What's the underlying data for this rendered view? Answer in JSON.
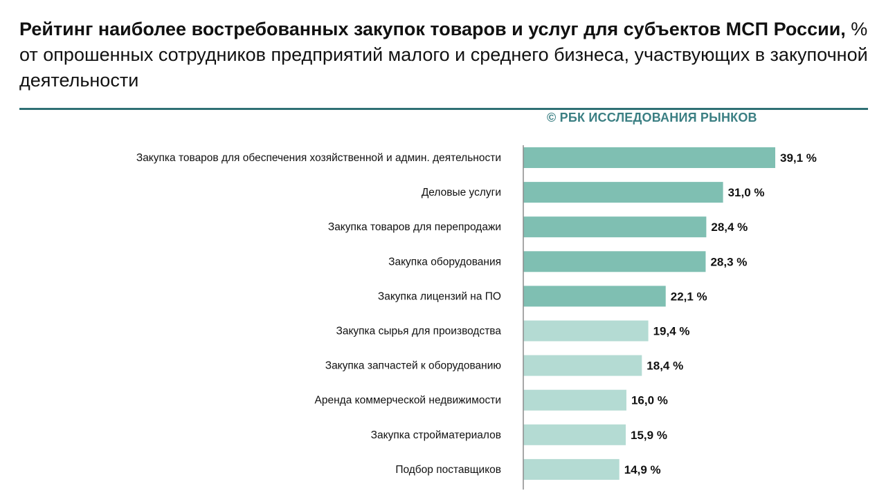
{
  "header": {
    "title_bold": "Рейтинг наиболее востребованных закупок товаров и услуг для субъектов МСП России,",
    "title_rest": " % от опрошенных сотрудников предприятий малого и среднего бизнеса, участвующих в закупочной деятельности",
    "source": "© РБК ИССЛЕДОВАНИЯ РЫНКОВ"
  },
  "colors": {
    "accent_dark": "#2e6f74",
    "source_text": "#3b7f83",
    "bar_top": "#7fbfb2",
    "bar_rest": "#b4dbd3",
    "axis": "#8a8a8a"
  },
  "chart_data": {
    "type": "bar",
    "orientation": "horizontal",
    "categories": [
      "Закупка товаров для обеспечения хозяйственной и админ. деятельности",
      "Деловые услуги",
      "Закупка товаров для перепродажи",
      "Закупка оборудования",
      "Закупка лицензий на ПО",
      "Закупка сырья для производства",
      "Закупка запчастей к оборудованию",
      "Аренда коммерческой недвижимости",
      "Закупка стройматериалов",
      "Подбор поставщиков"
    ],
    "values": [
      39.1,
      31.0,
      28.4,
      28.3,
      22.1,
      19.4,
      18.4,
      16.0,
      15.9,
      14.9
    ],
    "value_labels": [
      "39,1 %",
      "31,0 %",
      "28,4 %",
      "28,3 %",
      "22,1 %",
      "19,4 %",
      "18,4 %",
      "16,0 %",
      "15,9 %",
      "14,9 %"
    ],
    "highlighted_top": 5,
    "xlim": [
      0,
      39.1
    ],
    "grid": false,
    "legend": "none"
  }
}
